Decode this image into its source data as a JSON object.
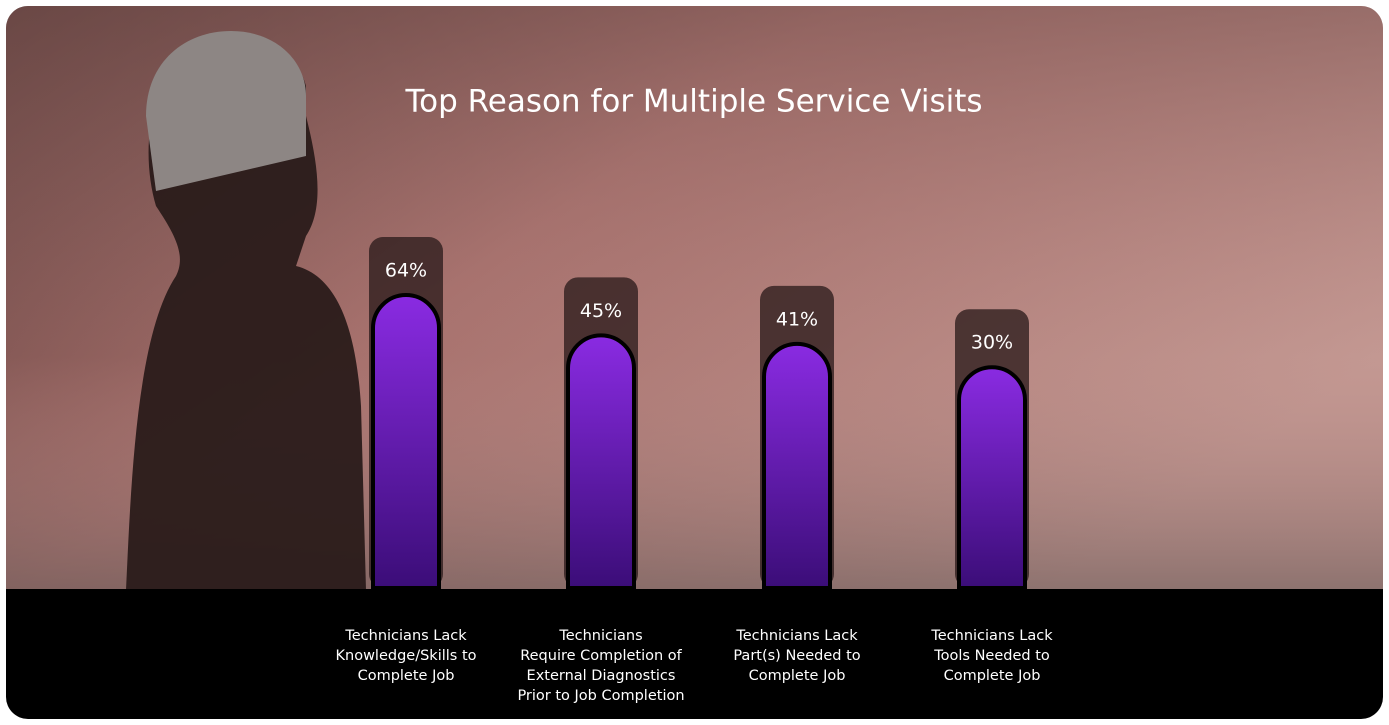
{
  "chart_data": {
    "type": "bar",
    "title": "Top Reason for Multiple Service Visits",
    "categories": [
      "Technicians Lack\nKnowledge/Skills to\nComplete Job",
      "Technicians\nRequire Completion of\nExternal Diagnostics\nPrior to Job Completion",
      "Technicians Lack\nPart(s) Needed to\nComplete Job",
      "Technicians Lack\nTools Needed to\nComplete Job"
    ],
    "values": [
      64,
      45,
      41,
      30
    ],
    "value_labels": [
      "64%",
      "45%",
      "41%",
      "30%"
    ],
    "color": "#8a2be2",
    "ylim": [
      -74,
      64
    ]
  }
}
